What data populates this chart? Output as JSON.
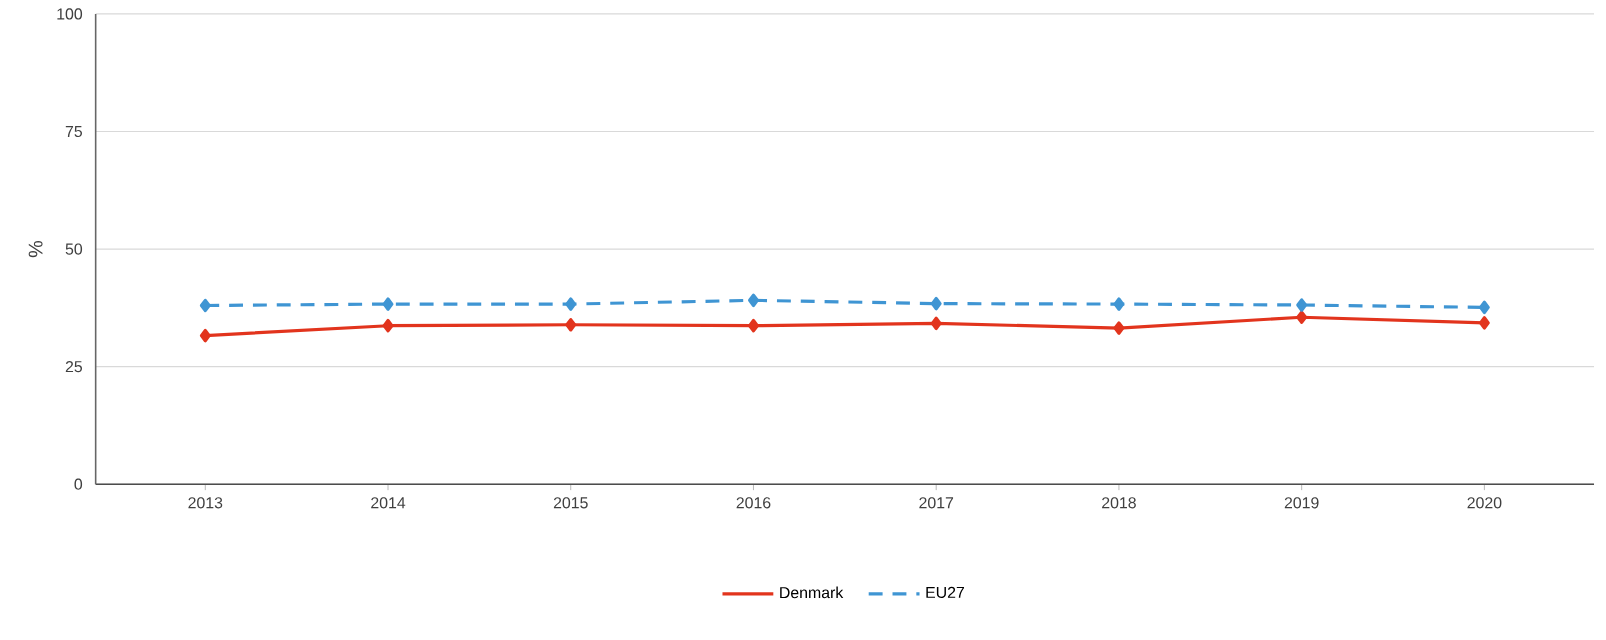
{
  "chart_data": {
    "type": "line",
    "ylabel": "%",
    "categories": [
      "2013",
      "2014",
      "2015",
      "2016",
      "2017",
      "2018",
      "2019",
      "2020"
    ],
    "series": [
      {
        "name": "Denmark",
        "color": "#e2341d",
        "line_style": "solid",
        "values": [
          31.6,
          33.7,
          33.9,
          33.7,
          34.2,
          33.2,
          35.5,
          34.3
        ]
      },
      {
        "name": "EU27",
        "color": "#3f95d3",
        "line_style": "dashed",
        "values": [
          38.0,
          38.3,
          38.3,
          39.1,
          38.4,
          38.3,
          38.1,
          37.6
        ]
      }
    ],
    "ylim": [
      0,
      100
    ],
    "yticks": [
      0,
      25,
      50,
      75,
      100
    ],
    "grid": "y",
    "legend": "bottom",
    "marker": "diamond"
  }
}
